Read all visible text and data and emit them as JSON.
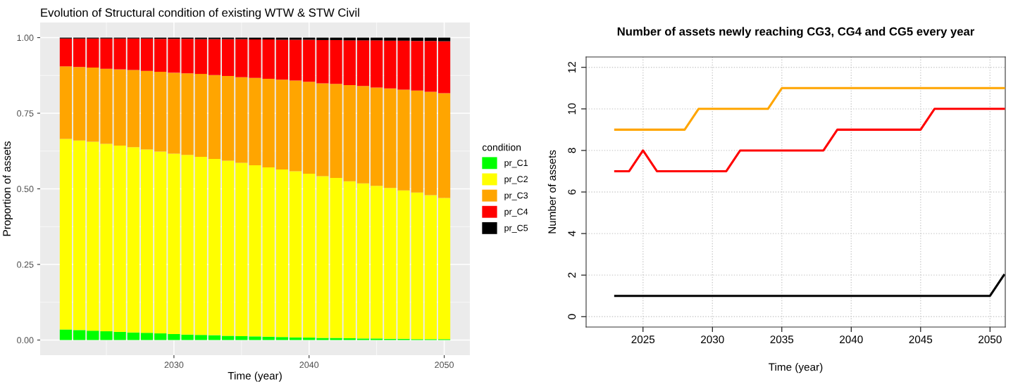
{
  "chart_data": [
    {
      "type": "bar",
      "title": "Evolution of Structural condition of existing WTW & STW Civil",
      "xlabel": "Time (year)",
      "ylabel": "Proportion of assets",
      "legend_title": "condition",
      "legend": "right",
      "stacked": true,
      "grid": true,
      "x": [
        2022,
        2023,
        2024,
        2025,
        2026,
        2027,
        2028,
        2029,
        2030,
        2031,
        2032,
        2033,
        2034,
        2035,
        2036,
        2037,
        2038,
        2039,
        2040,
        2041,
        2042,
        2043,
        2044,
        2045,
        2046,
        2047,
        2048,
        2049,
        2050
      ],
      "xlim": [
        2020.1,
        2051.9
      ],
      "xticks": [
        2030,
        2040,
        2050
      ],
      "ylim": [
        -0.05,
        1.05
      ],
      "yticks": [
        {
          "value": 0,
          "label": "0.00"
        },
        {
          "value": 0.25,
          "label": "0.25"
        },
        {
          "value": 0.5,
          "label": "0.50"
        },
        {
          "value": 0.75,
          "label": "0.75"
        },
        {
          "value": 1,
          "label": "1.00"
        }
      ],
      "series": [
        {
          "name": "pr_C1",
          "color": "#00ff00",
          "values": [
            0.035,
            0.033,
            0.031,
            0.029,
            0.027,
            0.025,
            0.024,
            0.022,
            0.02,
            0.018,
            0.017,
            0.016,
            0.014,
            0.013,
            0.012,
            0.011,
            0.01,
            0.009,
            0.008,
            0.007,
            0.007,
            0.006,
            0.005,
            0.005,
            0.004,
            0.004,
            0.003,
            0.003,
            0.003
          ]
        },
        {
          "name": "pr_C2",
          "color": "#ffff00",
          "values": [
            0.63,
            0.627,
            0.625,
            0.62,
            0.616,
            0.613,
            0.606,
            0.601,
            0.596,
            0.594,
            0.589,
            0.583,
            0.579,
            0.573,
            0.566,
            0.56,
            0.554,
            0.549,
            0.542,
            0.535,
            0.529,
            0.519,
            0.513,
            0.505,
            0.499,
            0.491,
            0.485,
            0.476,
            0.467
          ]
        },
        {
          "name": "pr_C3",
          "color": "#ffa500",
          "values": [
            0.24,
            0.243,
            0.245,
            0.248,
            0.252,
            0.255,
            0.26,
            0.264,
            0.268,
            0.27,
            0.274,
            0.277,
            0.28,
            0.283,
            0.289,
            0.293,
            0.297,
            0.3,
            0.304,
            0.307,
            0.311,
            0.318,
            0.322,
            0.325,
            0.329,
            0.333,
            0.337,
            0.342,
            0.346
          ]
        },
        {
          "name": "pr_C4",
          "color": "#ff0000",
          "values": [
            0.092,
            0.094,
            0.096,
            0.1,
            0.102,
            0.104,
            0.107,
            0.109,
            0.112,
            0.114,
            0.115,
            0.119,
            0.122,
            0.126,
            0.127,
            0.13,
            0.132,
            0.135,
            0.139,
            0.143,
            0.145,
            0.148,
            0.151,
            0.156,
            0.158,
            0.162,
            0.164,
            0.168,
            0.172
          ]
        },
        {
          "name": "pr_C5",
          "color": "#000000",
          "values": [
            0.003,
            0.003,
            0.003,
            0.003,
            0.003,
            0.003,
            0.003,
            0.004,
            0.004,
            0.004,
            0.005,
            0.005,
            0.005,
            0.005,
            0.006,
            0.006,
            0.007,
            0.007,
            0.007,
            0.008,
            0.008,
            0.009,
            0.009,
            0.009,
            0.01,
            0.01,
            0.011,
            0.011,
            0.012
          ]
        }
      ]
    },
    {
      "type": "line",
      "title": "Number of assets newly reaching CG3, CG4 and CG5 every year",
      "xlabel": "Time (year)",
      "ylabel": "Number of assets",
      "grid": true,
      "legend": false,
      "x": [
        2023,
        2024,
        2025,
        2026,
        2027,
        2028,
        2029,
        2030,
        2031,
        2032,
        2033,
        2034,
        2035,
        2036,
        2037,
        2038,
        2039,
        2040,
        2041,
        2042,
        2043,
        2044,
        2045,
        2046,
        2047,
        2048,
        2049,
        2050,
        2051
      ],
      "xlim": [
        2020.9,
        2051.1
      ],
      "xticks": [
        2025,
        2030,
        2035,
        2040,
        2045,
        2050
      ],
      "ylim": [
        -0.5,
        12.5
      ],
      "yticks": [
        0,
        2,
        4,
        6,
        8,
        10,
        12
      ],
      "series": [
        {
          "color": "#ffa500",
          "values": [
            9,
            9,
            9,
            9,
            9,
            9,
            10,
            10,
            10,
            10,
            10,
            10,
            11,
            11,
            11,
            11,
            11,
            11,
            11,
            11,
            11,
            11,
            11,
            11,
            11,
            11,
            11,
            11,
            11
          ]
        },
        {
          "color": "#ff0000",
          "values": [
            7,
            7,
            8,
            7,
            7,
            7,
            7,
            7,
            7,
            8,
            8,
            8,
            8,
            8,
            8,
            8,
            9,
            9,
            9,
            9,
            9,
            9,
            9,
            10,
            10,
            10,
            10,
            10,
            10
          ]
        },
        {
          "color": "#000000",
          "values": [
            1,
            1,
            1,
            1,
            1,
            1,
            1,
            1,
            1,
            1,
            1,
            1,
            1,
            1,
            1,
            1,
            1,
            1,
            1,
            1,
            1,
            1,
            1,
            1,
            1,
            1,
            1,
            1,
            2
          ]
        }
      ]
    }
  ]
}
